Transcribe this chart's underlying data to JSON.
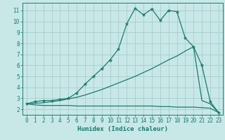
{
  "xlabel": "Humidex (Indice chaleur)",
  "bg_color": "#c8e8e8",
  "line_color": "#1a7a6e",
  "grid_color": "#a8cccc",
  "xlim": [
    -0.5,
    23.5
  ],
  "ylim": [
    1.5,
    11.7
  ],
  "xticks": [
    0,
    1,
    2,
    3,
    4,
    5,
    6,
    7,
    8,
    9,
    10,
    11,
    12,
    13,
    14,
    15,
    16,
    17,
    18,
    19,
    20,
    21,
    22,
    23
  ],
  "yticks": [
    2,
    3,
    4,
    5,
    6,
    7,
    8,
    9,
    10,
    11
  ],
  "curve1_x": [
    0,
    1,
    2,
    3,
    4,
    5,
    6,
    7,
    8,
    9,
    10,
    11,
    12,
    13,
    14,
    15,
    16,
    17,
    18,
    19,
    20,
    21,
    22,
    23
  ],
  "curve1_y": [
    2.5,
    2.7,
    2.8,
    2.8,
    2.9,
    3.0,
    3.5,
    4.3,
    5.0,
    5.7,
    6.5,
    7.5,
    9.8,
    11.2,
    10.6,
    11.15,
    10.1,
    11.0,
    10.9,
    8.5,
    7.7,
    6.0,
    2.7,
    1.7
  ],
  "curve2_x": [
    0,
    1,
    2,
    3,
    4,
    5,
    6,
    7,
    8,
    9,
    10,
    11,
    12,
    13,
    14,
    15,
    16,
    17,
    18,
    19,
    20,
    21,
    22,
    23
  ],
  "curve2_y": [
    2.5,
    2.55,
    2.6,
    2.7,
    2.8,
    2.95,
    3.1,
    3.3,
    3.55,
    3.8,
    4.1,
    4.4,
    4.7,
    5.0,
    5.35,
    5.7,
    6.1,
    6.5,
    6.85,
    7.3,
    7.7,
    2.8,
    2.5,
    1.7
  ],
  "curve3_x": [
    0,
    1,
    2,
    3,
    4,
    5,
    6,
    7,
    8,
    9,
    10,
    11,
    12,
    13,
    14,
    15,
    16,
    17,
    18,
    19,
    20,
    21,
    22,
    23
  ],
  "curve3_y": [
    2.5,
    2.4,
    2.35,
    2.35,
    2.35,
    2.35,
    2.3,
    2.3,
    2.3,
    2.3,
    2.3,
    2.3,
    2.3,
    2.3,
    2.3,
    2.3,
    2.25,
    2.25,
    2.2,
    2.2,
    2.2,
    2.15,
    2.1,
    1.7
  ]
}
